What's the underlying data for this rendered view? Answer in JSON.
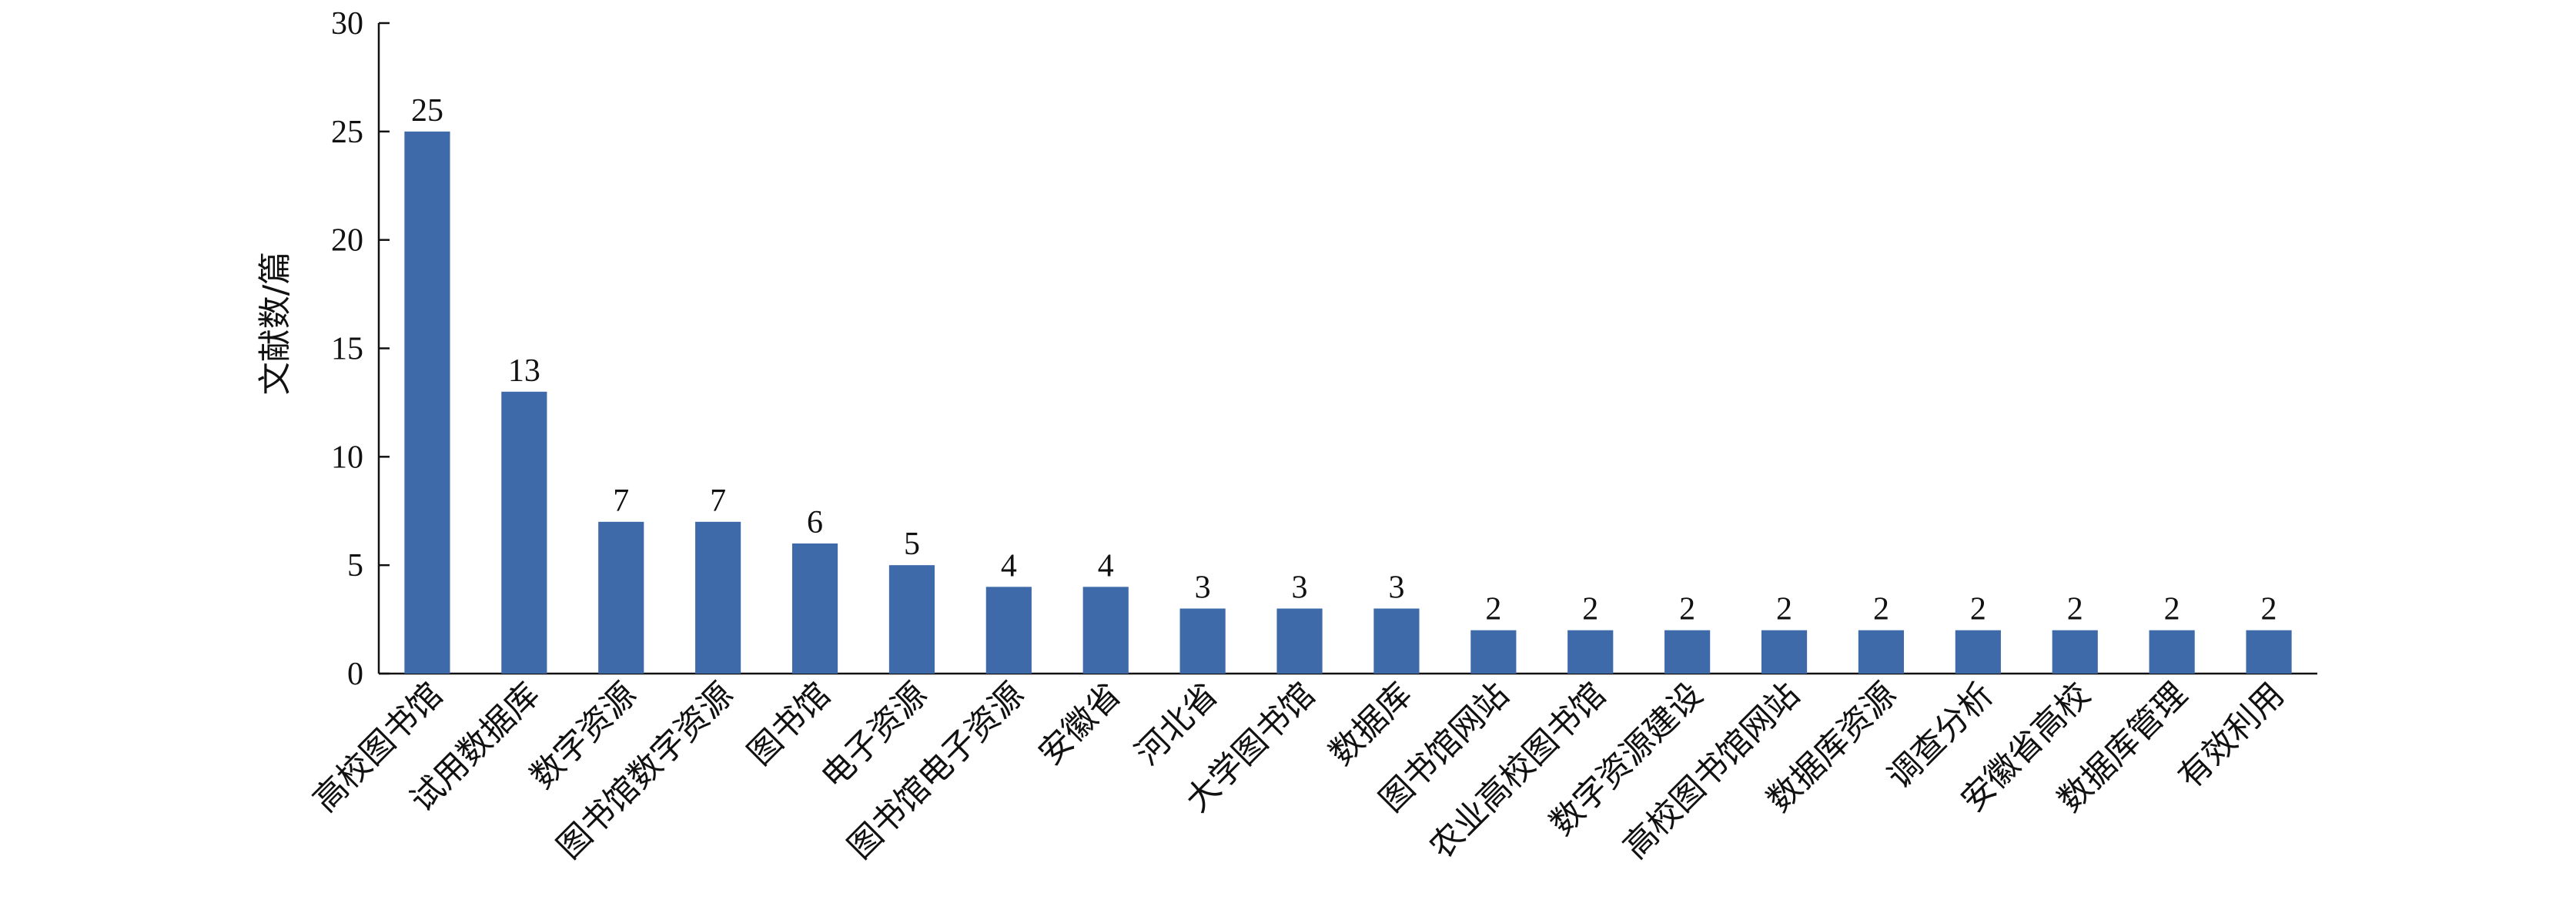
{
  "chart_data": {
    "type": "bar",
    "title": "",
    "xlabel": "",
    "ylabel": "文献数/篇",
    "ylim": [
      0,
      30
    ],
    "yticks": [
      0,
      5,
      10,
      15,
      20,
      25,
      30
    ],
    "grid": false,
    "legend": "none",
    "bar_color": "#3F6AA9",
    "categories": [
      "高校图书馆",
      "试用数据库",
      "数字资源",
      "图书馆数字资源",
      "图书馆",
      "电子资源",
      "图书馆电子资源",
      "安徽省",
      "河北省",
      "大学图书馆",
      "数据库",
      "图书馆网站",
      "农业高校图书馆",
      "数字资源建设",
      "高校图书馆网站",
      "数据库资源",
      "调查分析",
      "安徽省高校",
      "数据库管理",
      "有效利用"
    ],
    "values": [
      25,
      13,
      7,
      7,
      6,
      5,
      4,
      4,
      3,
      3,
      3,
      2,
      2,
      2,
      2,
      2,
      2,
      2,
      2,
      2
    ]
  }
}
